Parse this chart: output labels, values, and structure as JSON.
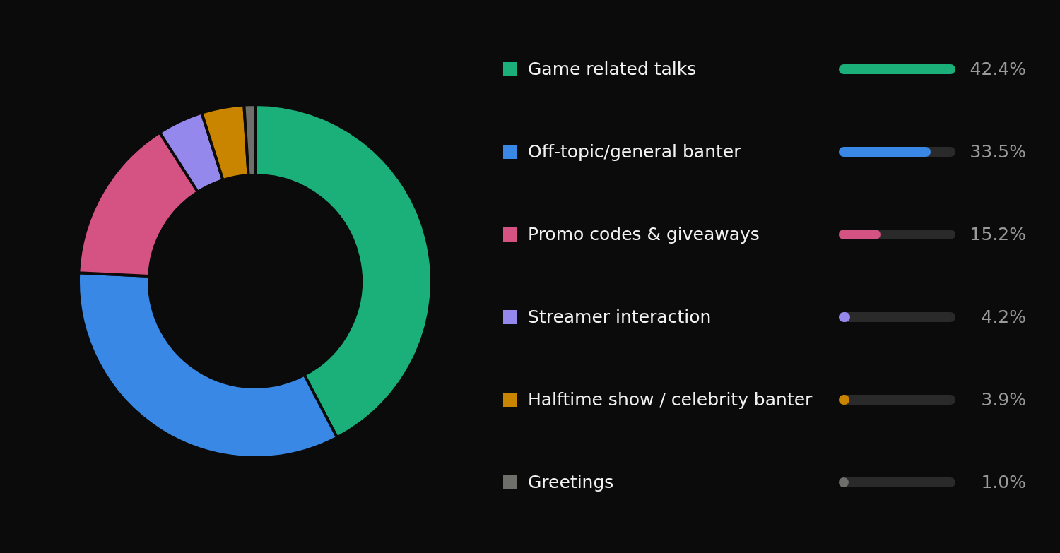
{
  "chart_data": {
    "type": "donut",
    "categories": [
      "Game related talks",
      "Off-topic/general banter",
      "Promo codes & giveaways",
      "Streamer interaction",
      "Halftime show / celebrity banter",
      "Greetings"
    ],
    "values": [
      42.4,
      33.5,
      15.2,
      4.2,
      3.9,
      1.0
    ],
    "colors": [
      "#1baf7a",
      "#3a88e5",
      "#d45383",
      "#9588ec",
      "#c98500",
      "#6e6e6a"
    ],
    "value_labels": [
      "42.4%",
      "33.5%",
      "15.2%",
      "4.2%",
      "3.9%",
      "1.0%"
    ],
    "legend": "right"
  }
}
